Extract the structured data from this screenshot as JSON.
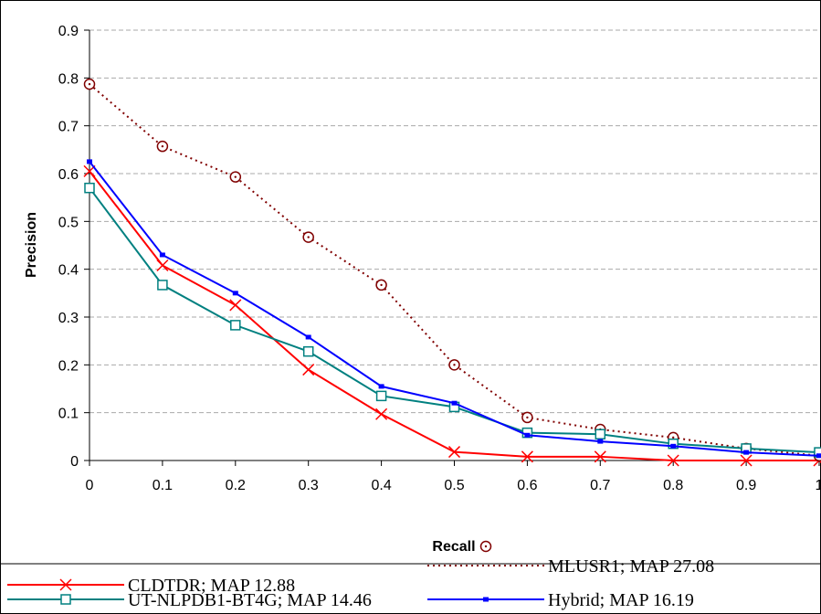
{
  "chart_data": {
    "type": "line",
    "xlabel": "Recall",
    "ylabel": "Precision",
    "x": [
      0,
      0.1,
      0.2,
      0.3,
      0.4,
      0.5,
      0.6,
      0.7,
      0.8,
      0.9,
      1
    ],
    "x_tick_labels": [
      "0",
      "0.1",
      "0.2",
      "0.3",
      "0.4",
      "0.5",
      "0.6",
      "0.7",
      "0.8",
      "0.9",
      "1"
    ],
    "y_tick_labels": [
      "0",
      "0.1",
      "0.2",
      "0.3",
      "0.4",
      "0.5",
      "0.6",
      "0.7",
      "0.8",
      "0.9"
    ],
    "xlim": [
      0,
      1
    ],
    "ylim": [
      0,
      0.9
    ],
    "grid": "horizontal dashed",
    "legend_position": "bottom",
    "series": [
      {
        "name": "CLDTDR; MAP 12.88",
        "values": [
          0.605,
          0.408,
          0.325,
          0.19,
          0.097,
          0.018,
          0.008,
          0.008,
          0.0,
          0.0,
          0.0
        ],
        "color": "#ff0000",
        "marker": "x",
        "dash": "solid"
      },
      {
        "name": "MLUSR1; MAP 27.08",
        "values": [
          0.787,
          0.657,
          0.593,
          0.467,
          0.367,
          0.2,
          0.09,
          0.065,
          0.048,
          0.025,
          0.01
        ],
        "color": "#800000",
        "marker": "circle",
        "dash": "dotted"
      },
      {
        "name": "UT-NLPDB1-BT4G; MAP 14.46",
        "values": [
          0.57,
          0.367,
          0.283,
          0.228,
          0.135,
          0.112,
          0.058,
          0.055,
          0.035,
          0.025,
          0.017
        ],
        "color": "#008080",
        "marker": "square",
        "dash": "solid"
      },
      {
        "name": "Hybrid; MAP 16.19",
        "values": [
          0.625,
          0.43,
          0.35,
          0.258,
          0.155,
          0.12,
          0.053,
          0.04,
          0.03,
          0.017,
          0.01
        ],
        "color": "#0000ff",
        "marker": "dash",
        "dash": "solid"
      }
    ]
  }
}
